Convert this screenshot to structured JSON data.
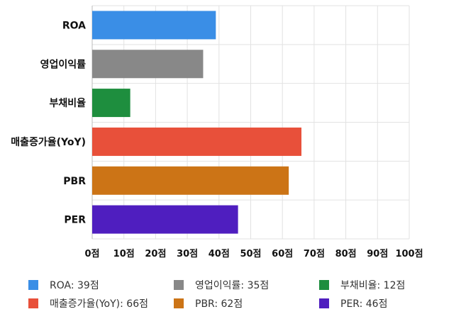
{
  "chart_data": {
    "type": "bar",
    "orientation": "horizontal",
    "categories": [
      "ROA",
      "영업이익률",
      "부채비율",
      "매출증가율(YoY)",
      "PBR",
      "PER"
    ],
    "values": [
      39,
      35,
      12,
      66,
      62,
      46
    ],
    "colors": [
      "#3a8ee6",
      "#888888",
      "#1e8e3e",
      "#e8503a",
      "#cc7416",
      "#4f1ebf"
    ],
    "xlim": [
      0,
      100
    ],
    "xticks": [
      "0점",
      "10점",
      "20점",
      "30점",
      "40점",
      "50점",
      "60점",
      "70점",
      "80점",
      "90점",
      "100점"
    ],
    "grid": true,
    "legend_position": "bottom",
    "title": "",
    "xlabel": "",
    "ylabel": ""
  },
  "legend": [
    {
      "label": "ROA: 39점",
      "color": "#3a8ee6"
    },
    {
      "label": "영업이익률: 35점",
      "color": "#888888"
    },
    {
      "label": "부채비율: 12점",
      "color": "#1e8e3e"
    },
    {
      "label": "매출증가율(YoY): 66점",
      "color": "#e8503a"
    },
    {
      "label": "PBR: 62점",
      "color": "#cc7416"
    },
    {
      "label": "PER: 46점",
      "color": "#4f1ebf"
    }
  ]
}
